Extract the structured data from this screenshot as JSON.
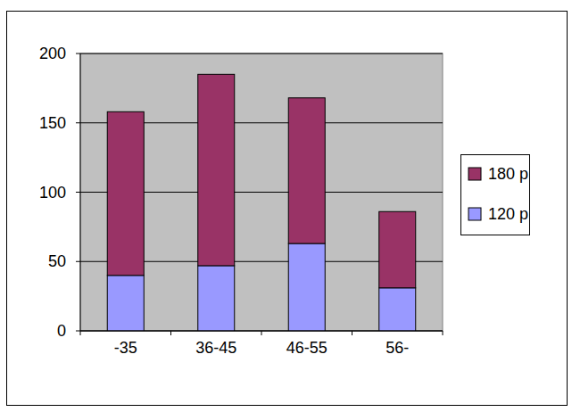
{
  "chart_data": {
    "type": "bar",
    "stacked": true,
    "categories": [
      "-35",
      "36-45",
      "46-55",
      "56-"
    ],
    "series": [
      {
        "name": "120 p",
        "color": "#9999ff",
        "values": [
          40,
          47,
          63,
          31
        ]
      },
      {
        "name": "180 p",
        "color": "#993366",
        "values": [
          118,
          138,
          105,
          55
        ]
      }
    ],
    "ylim": [
      0,
      200
    ],
    "yticks": [
      0,
      50,
      100,
      150,
      200
    ],
    "grid": true,
    "legend": "right"
  }
}
